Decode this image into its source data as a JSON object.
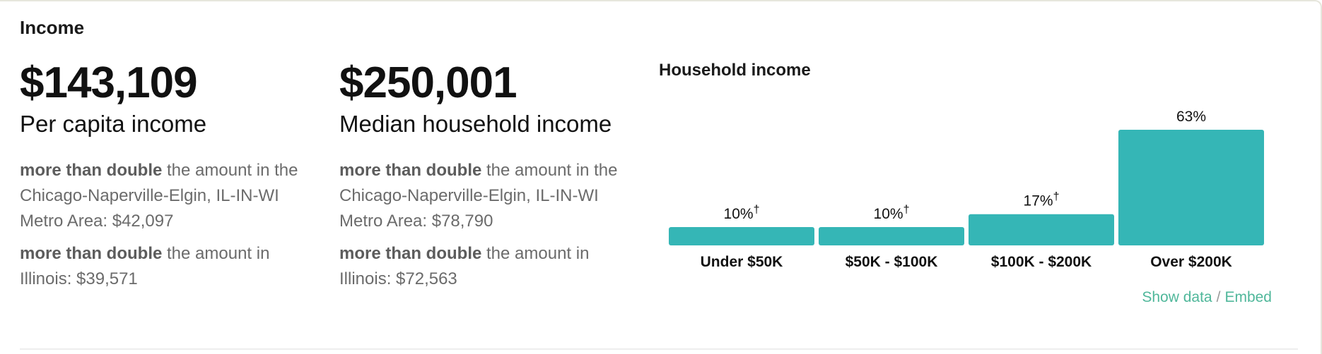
{
  "section": {
    "title": "Income"
  },
  "per_capita": {
    "value": "$143,109",
    "label": "Per capita income",
    "comparisons": [
      {
        "strong": "more than double",
        "text": " the amount in the Chicago-Naperville-Elgin, IL-IN-WI Metro Area: $42,097"
      },
      {
        "strong": "more than double",
        "text": " the amount in Illinois: $39,571"
      }
    ]
  },
  "median_household": {
    "value": "$250,001",
    "label": "Median household income",
    "comparisons": [
      {
        "strong": "more than double",
        "text": " the amount in the Chicago-Naperville-Elgin, IL-IN-WI Metro Area: $78,790"
      },
      {
        "strong": "more than double",
        "text": " the amount in Illinois: $72,563"
      }
    ]
  },
  "links": {
    "show_data": "Show data",
    "separator": "/",
    "embed": "Embed"
  },
  "colors": {
    "bar": "#35b6b6",
    "link": "#4fb79a"
  },
  "chart_data": {
    "type": "bar",
    "title": "Household income",
    "categories": [
      "Under $50K",
      "$50K - $100K",
      "$100K - $200K",
      "Over $200K"
    ],
    "values": [
      10,
      10,
      17,
      63
    ],
    "value_labels": [
      "10%",
      "10%",
      "17%",
      "63%"
    ],
    "dagger": [
      true,
      true,
      true,
      false
    ],
    "unit": "%",
    "ylim": [
      0,
      63
    ],
    "grid": false,
    "legend": "none"
  }
}
